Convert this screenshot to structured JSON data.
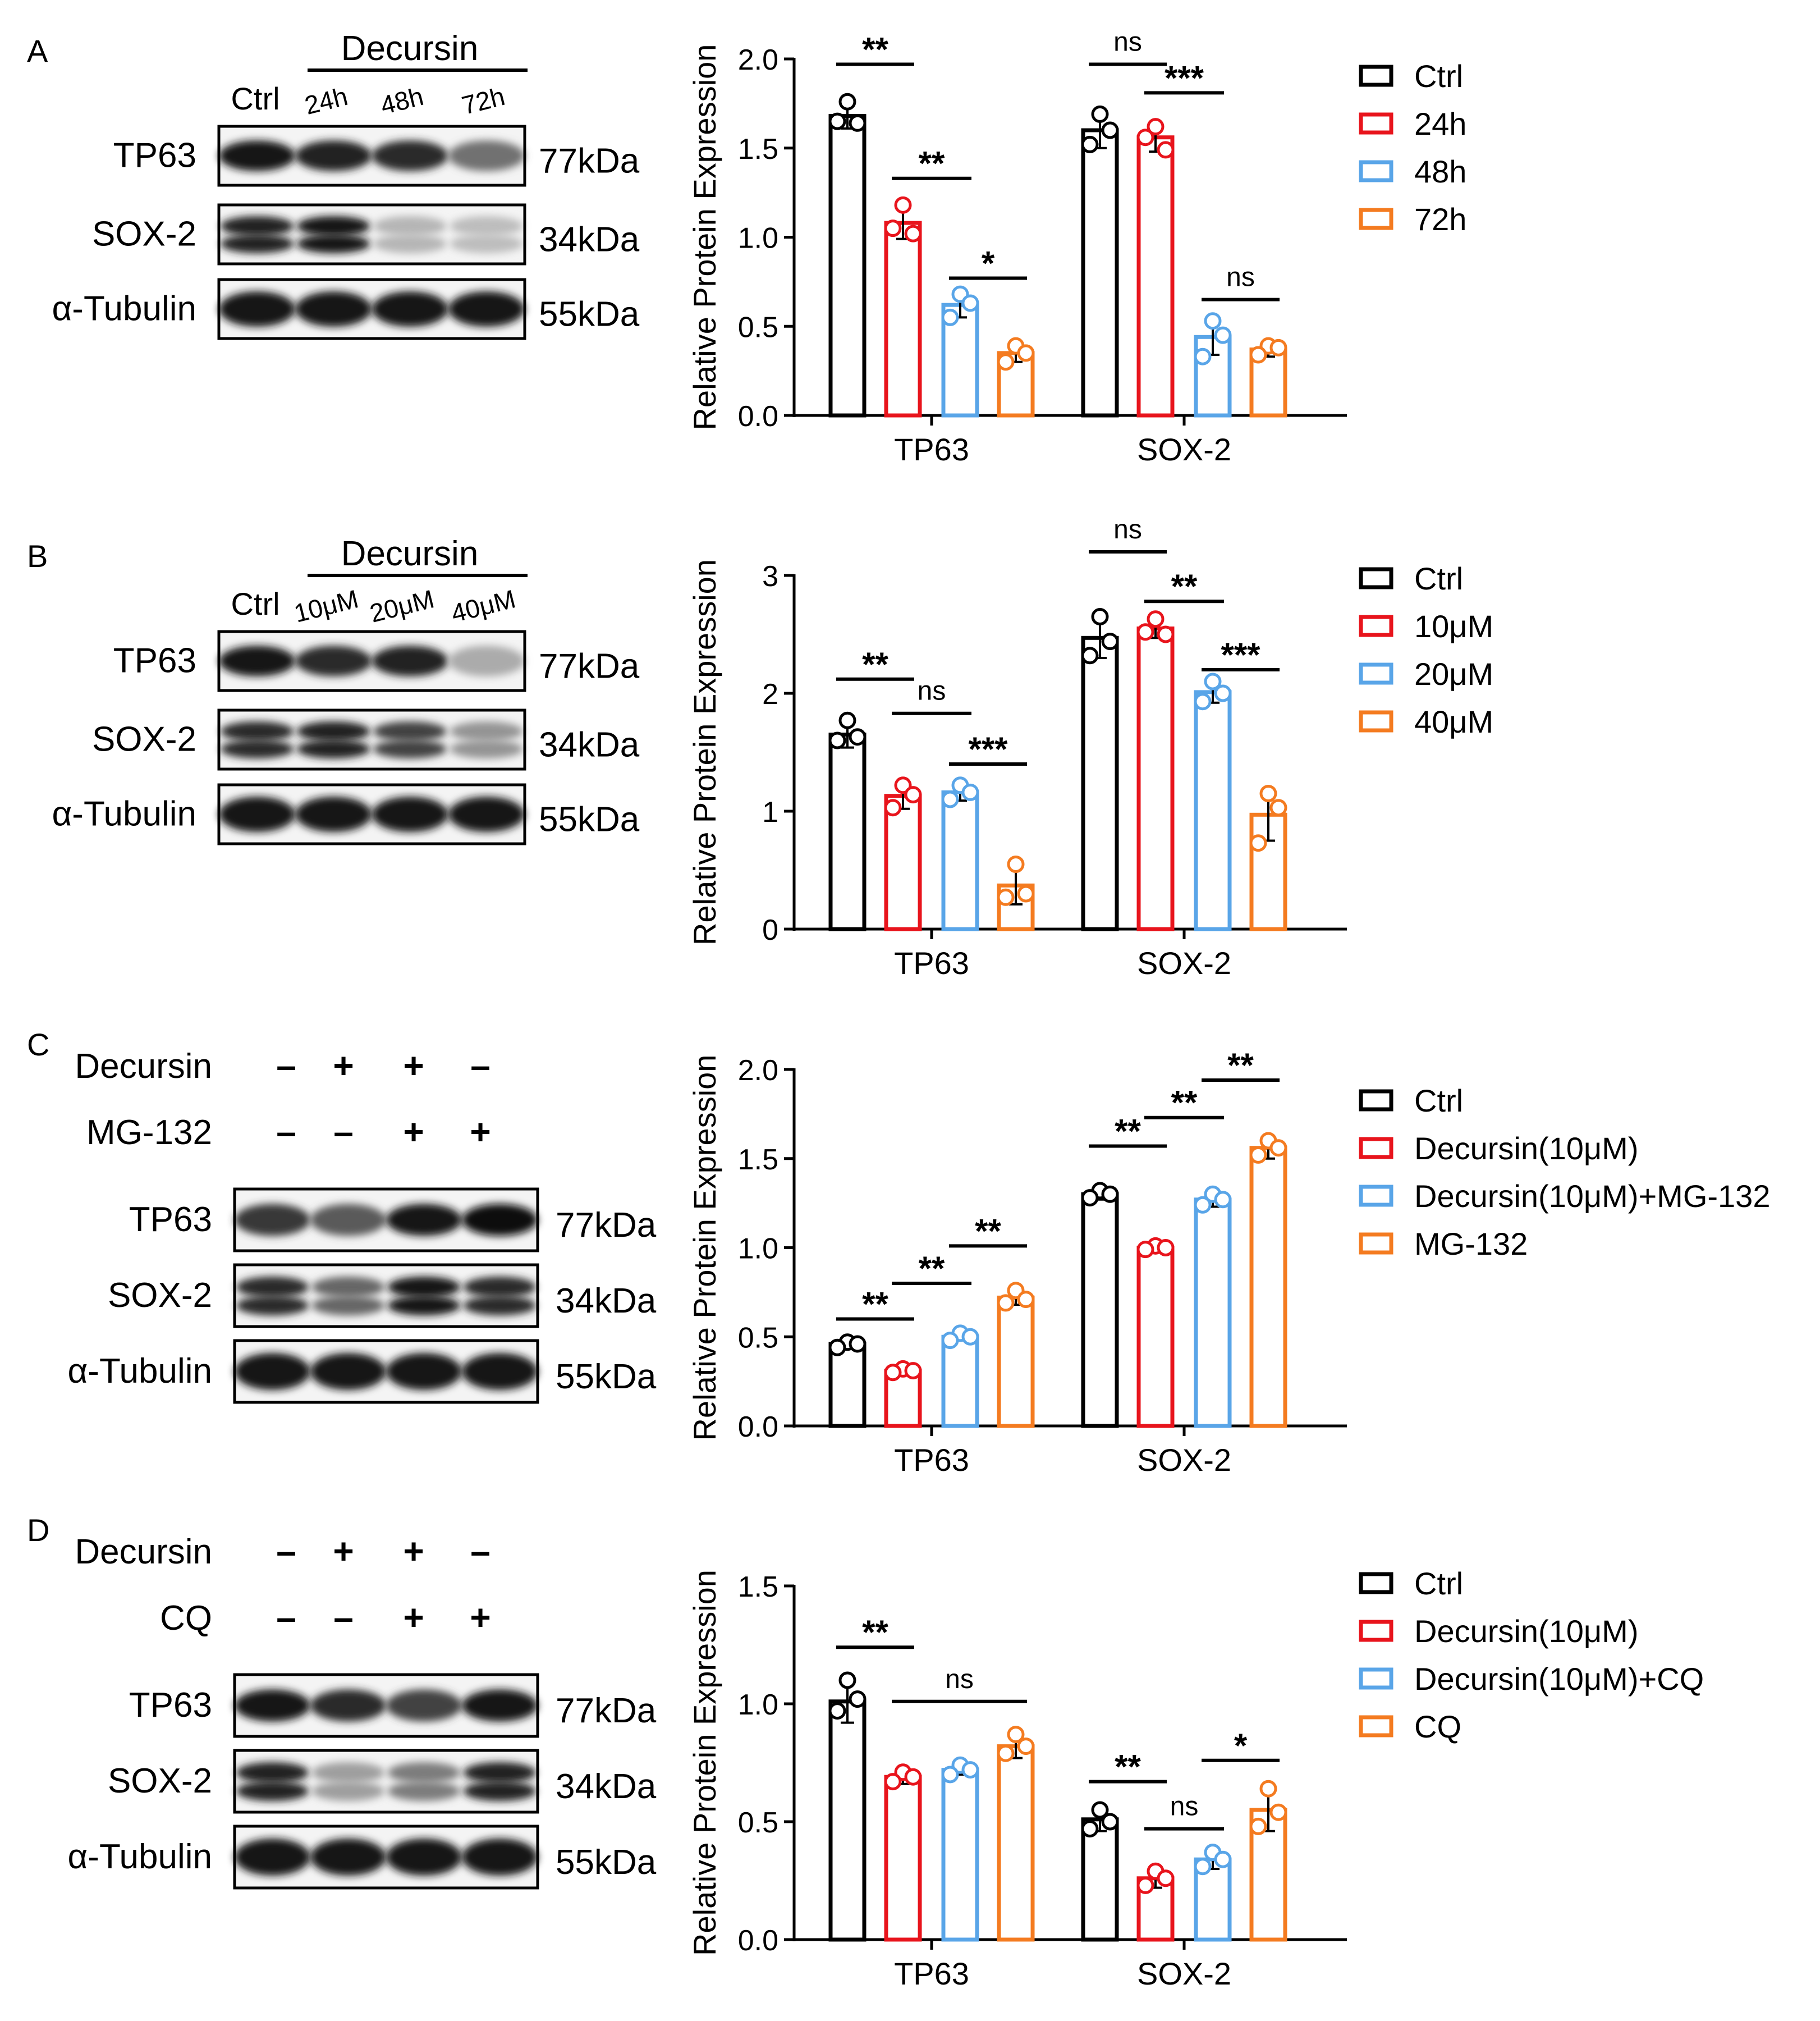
{
  "colors": {
    "ctrl": "#000000",
    "c2": "#e8141c",
    "c3": "#59a5e8",
    "c4": "#f47b20"
  },
  "panels": [
    {
      "letter": "A",
      "blot": {
        "style": "time",
        "header": "Decursin",
        "lanes": [
          "Ctrl",
          "24h",
          "48h",
          "72h"
        ],
        "bands": [
          {
            "label": "TP63",
            "kda": "77kDa"
          },
          {
            "label": "SOX-2",
            "kda": "34kDa"
          },
          {
            "label": "α-Tubulin",
            "kda": "55kDa"
          }
        ]
      },
      "legend": [
        "Ctrl",
        "24h",
        "48h",
        "72h"
      ],
      "sig": [
        {
          "text": "**"
        },
        {
          "text": "**"
        },
        {
          "text": "*"
        },
        {
          "text": "ns"
        },
        {
          "text": "***"
        },
        {
          "text": "ns"
        }
      ]
    },
    {
      "letter": "B",
      "blot": {
        "style": "time",
        "header": "Decursin",
        "lanes": [
          "Ctrl",
          "10μM",
          "20μM",
          "40μM"
        ],
        "bands": [
          {
            "label": "TP63",
            "kda": "77kDa"
          },
          {
            "label": "SOX-2",
            "kda": "34kDa"
          },
          {
            "label": "α-Tubulin",
            "kda": "55kDa"
          }
        ]
      },
      "legend": [
        "Ctrl",
        "10μM",
        "20μM",
        "40μM"
      ],
      "sig": [
        {
          "text": "**"
        },
        {
          "text": "ns"
        },
        {
          "text": "***"
        },
        {
          "text": "ns"
        },
        {
          "text": "**"
        },
        {
          "text": "***"
        }
      ]
    },
    {
      "letter": "C",
      "blot": {
        "style": "treat",
        "rows": [
          {
            "label": "Decursin",
            "marks": [
              "–",
              "+",
              "+",
              "–"
            ]
          },
          {
            "label": "MG-132",
            "marks": [
              "–",
              "–",
              "+",
              "+"
            ]
          }
        ],
        "bands": [
          {
            "label": "TP63",
            "kda": "77kDa"
          },
          {
            "label": "SOX-2",
            "kda": "34kDa"
          },
          {
            "label": "α-Tubulin",
            "kda": "55kDa"
          }
        ]
      },
      "legend": [
        "Ctrl",
        "Decursin(10μM)",
        "Decursin(10μM)+MG-132",
        "MG-132"
      ],
      "sig": [
        {
          "text": "**"
        },
        {
          "text": "**"
        },
        {
          "text": "**"
        },
        {
          "text": "**"
        },
        {
          "text": "**"
        },
        {
          "text": "**"
        }
      ]
    },
    {
      "letter": "D",
      "blot": {
        "style": "treat",
        "rows": [
          {
            "label": "Decursin",
            "marks": [
              "–",
              "+",
              "+",
              "–"
            ]
          },
          {
            "label": "CQ",
            "marks": [
              "–",
              "–",
              "+",
              "+"
            ]
          }
        ],
        "bands": [
          {
            "label": "TP63",
            "kda": "77kDa"
          },
          {
            "label": "SOX-2",
            "kda": "34kDa"
          },
          {
            "label": "α-Tubulin",
            "kda": "55kDa"
          }
        ]
      },
      "legend": [
        "Ctrl",
        "Decursin(10μM)",
        "Decursin(10μM)+CQ",
        "CQ"
      ],
      "sig": [
        {
          "text": "**"
        },
        {
          "text": "ns"
        },
        {
          "text": "**"
        },
        {
          "text": "ns"
        },
        {
          "text": "*"
        }
      ]
    }
  ],
  "chart_data": [
    {
      "type": "bar",
      "title": "",
      "xlabel": "",
      "ylabel": "Relative Protein Expression",
      "ylim": [
        0,
        2.0
      ],
      "yticks": [
        "0.0",
        "0.5",
        "1.0",
        "1.5",
        "2.0"
      ],
      "categories": [
        "TP63",
        "SOX-2"
      ],
      "series": [
        {
          "name": "Ctrl",
          "values": [
            1.68,
            1.6
          ],
          "err": [
            0.07,
            0.1
          ],
          "points": [
            [
              1.76,
              1.65,
              1.64
            ],
            [
              1.69,
              1.52,
              1.6
            ]
          ]
        },
        {
          "name": "24h",
          "values": [
            1.08,
            1.56
          ],
          "err": [
            0.09,
            0.08
          ],
          "points": [
            [
              1.18,
              1.05,
              1.02
            ],
            [
              1.62,
              1.56,
              1.49
            ]
          ]
        },
        {
          "name": "48h",
          "values": [
            0.62,
            0.44
          ],
          "err": [
            0.07,
            0.1
          ],
          "points": [
            [
              0.68,
              0.55,
              0.63
            ],
            [
              0.53,
              0.33,
              0.45
            ]
          ]
        },
        {
          "name": "72h",
          "values": [
            0.35,
            0.37
          ],
          "err": [
            0.05,
            0.04
          ],
          "points": [
            [
              0.39,
              0.3,
              0.35
            ],
            [
              0.39,
              0.34,
              0.38
            ]
          ]
        }
      ]
    },
    {
      "type": "bar",
      "title": "",
      "xlabel": "",
      "ylabel": "Relative Protein Expression",
      "ylim": [
        0,
        3
      ],
      "yticks": [
        "0",
        "1",
        "2",
        "3"
      ],
      "categories": [
        "TP63",
        "SOX-2"
      ],
      "series": [
        {
          "name": "Ctrl",
          "values": [
            1.65,
            2.47
          ],
          "err": [
            0.11,
            0.17
          ],
          "points": [
            [
              1.77,
              1.6,
              1.63
            ],
            [
              2.65,
              2.32,
              2.44
            ]
          ]
        },
        {
          "name": "10μM",
          "values": [
            1.13,
            2.55
          ],
          "err": [
            0.11,
            0.08
          ],
          "points": [
            [
              1.22,
              1.03,
              1.14
            ],
            [
              2.63,
              2.52,
              2.5
            ]
          ]
        },
        {
          "name": "20μM",
          "values": [
            1.16,
            2.01
          ],
          "err": [
            0.07,
            0.09
          ],
          "points": [
            [
              1.22,
              1.1,
              1.16
            ],
            [
              2.1,
              1.93,
              2.0
            ]
          ]
        },
        {
          "name": "40μM",
          "values": [
            0.37,
            0.97
          ],
          "err": [
            0.16,
            0.22
          ],
          "points": [
            [
              0.55,
              0.27,
              0.3
            ],
            [
              1.15,
              0.73,
              1.03
            ]
          ]
        }
      ]
    },
    {
      "type": "bar",
      "title": "",
      "xlabel": "",
      "ylabel": "Relative Protein Expression",
      "ylim": [
        0,
        2.0
      ],
      "yticks": [
        "0.0",
        "0.5",
        "1.0",
        "1.5",
        "2.0"
      ],
      "categories": [
        "TP63",
        "SOX-2"
      ],
      "series": [
        {
          "name": "Ctrl",
          "values": [
            0.46,
            1.3
          ],
          "err": [
            0.02,
            0.03
          ],
          "points": [
            [
              0.47,
              0.44,
              0.46
            ],
            [
              1.32,
              1.28,
              1.3
            ]
          ]
        },
        {
          "name": "Decursin(10μM)",
          "values": [
            0.31,
            1.0
          ],
          "err": [
            0.02,
            0.02
          ],
          "points": [
            [
              0.32,
              0.3,
              0.31
            ],
            [
              1.01,
              0.99,
              1.0
            ]
          ]
        },
        {
          "name": "Decursin(10μM)+MG-132",
          "values": [
            0.5,
            1.27
          ],
          "err": [
            0.02,
            0.04
          ],
          "points": [
            [
              0.52,
              0.48,
              0.5
            ],
            [
              1.3,
              1.24,
              1.27
            ]
          ]
        },
        {
          "name": "MG-132",
          "values": [
            0.72,
            1.56
          ],
          "err": [
            0.04,
            0.06
          ],
          "points": [
            [
              0.76,
              0.69,
              0.71
            ],
            [
              1.6,
              1.52,
              1.56
            ]
          ]
        }
      ]
    },
    {
      "type": "bar",
      "title": "",
      "xlabel": "",
      "ylabel": "Relative Protein Expression",
      "ylim": [
        0,
        1.5
      ],
      "yticks": [
        "0.0",
        "0.5",
        "1.0",
        "1.5"
      ],
      "categories": [
        "TP63",
        "SOX-2"
      ],
      "series": [
        {
          "name": "Ctrl",
          "values": [
            1.01,
            0.51
          ],
          "err": [
            0.09,
            0.05
          ],
          "points": [
            [
              1.1,
              0.97,
              1.02
            ],
            [
              0.55,
              0.47,
              0.5
            ]
          ]
        },
        {
          "name": "Decursin(10μM)",
          "values": [
            0.69,
            0.26
          ],
          "err": [
            0.03,
            0.04
          ],
          "points": [
            [
              0.71,
              0.67,
              0.69
            ],
            [
              0.29,
              0.23,
              0.26
            ]
          ]
        },
        {
          "name": "Decursin(10μM)+CQ",
          "values": [
            0.72,
            0.34
          ],
          "err": [
            0.02,
            0.04
          ],
          "points": [
            [
              0.74,
              0.7,
              0.72
            ],
            [
              0.37,
              0.31,
              0.34
            ]
          ]
        },
        {
          "name": "CQ",
          "values": [
            0.82,
            0.55
          ],
          "err": [
            0.05,
            0.09
          ],
          "points": [
            [
              0.87,
              0.79,
              0.82
            ],
            [
              0.64,
              0.48,
              0.54
            ]
          ]
        }
      ]
    }
  ]
}
